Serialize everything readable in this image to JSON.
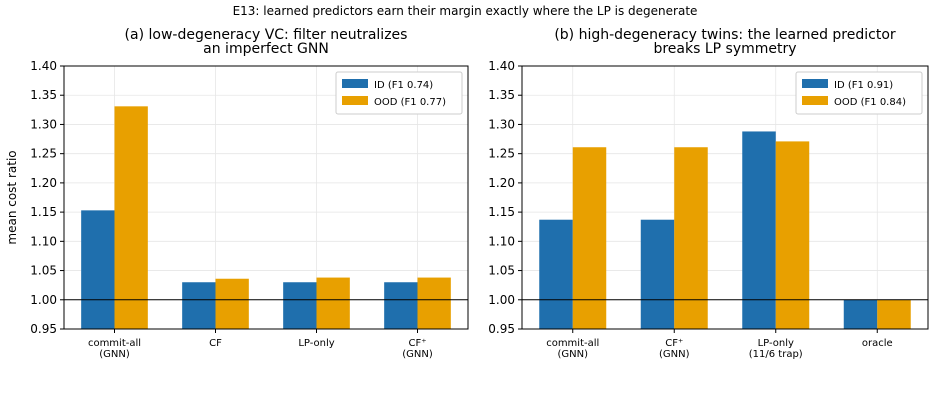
{
  "figure": {
    "suptitle": "E13: learned predictors earn their margin exactly where the LP is degenerate",
    "bottom_caption": ""
  },
  "chart_data": [
    {
      "type": "bar",
      "title": "(a) low-degeneracy VC: filter neutralizes\nan imperfect GNN",
      "xlabel": "",
      "ylabel": "mean cost ratio",
      "ylim": [
        0.95,
        1.4
      ],
      "yticks": [
        "0.95",
        "1.00",
        "1.05",
        "1.10",
        "1.15",
        "1.20",
        "1.25",
        "1.30",
        "1.35",
        "1.40"
      ],
      "grid": true,
      "legend_position": "top-right",
      "reference_line": 1.0,
      "categories": [
        "commit-all\n(GNN)",
        "CF",
        "LP-only",
        "CF⁺\n(GNN)"
      ],
      "series": [
        {
          "name": "ID (F1 0.74)",
          "color": "#1f6fad",
          "values": [
            1.153,
            1.03,
            1.03,
            1.03
          ]
        },
        {
          "name": "OOD (F1 0.77)",
          "color": "#e8a000",
          "values": [
            1.331,
            1.036,
            1.038,
            1.038
          ]
        }
      ]
    },
    {
      "type": "bar",
      "title": "(b) high-degeneracy twins: the learned predictor\nbreaks LP symmetry",
      "xlabel": "",
      "ylabel": "",
      "ylim": [
        0.95,
        1.4
      ],
      "yticks": [
        "0.95",
        "1.00",
        "1.05",
        "1.10",
        "1.15",
        "1.20",
        "1.25",
        "1.30",
        "1.35",
        "1.40"
      ],
      "grid": true,
      "legend_position": "top-right",
      "reference_line": 1.0,
      "categories": [
        "commit-all\n(GNN)",
        "CF⁺\n(GNN)",
        "LP-only\n(11/6 trap)",
        "oracle"
      ],
      "series": [
        {
          "name": "ID (F1 0.91)",
          "color": "#1f6fad",
          "values": [
            1.137,
            1.137,
            1.288,
            1.0
          ]
        },
        {
          "name": "OOD (F1 0.84)",
          "color": "#e8a000",
          "values": [
            1.261,
            1.261,
            1.271,
            1.0
          ]
        }
      ]
    }
  ]
}
